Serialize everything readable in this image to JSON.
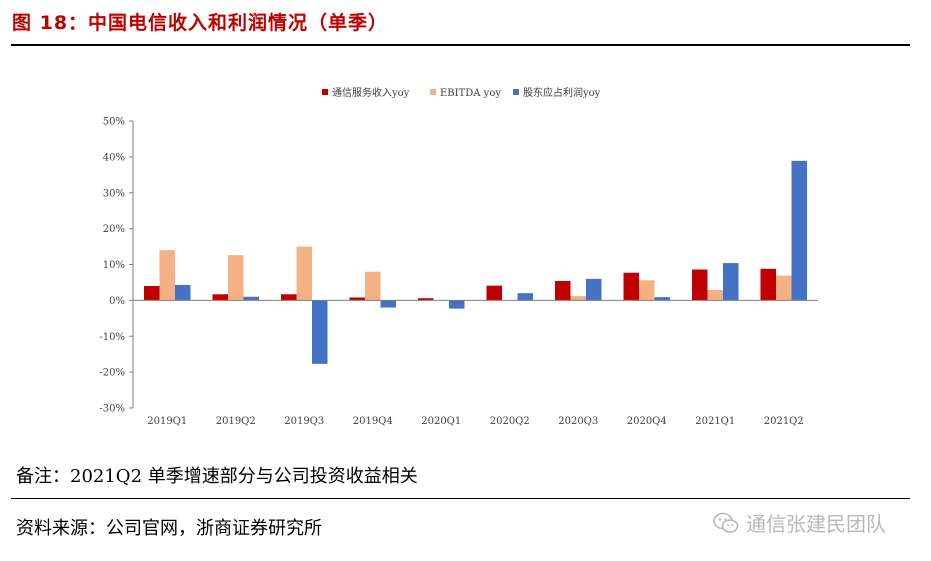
{
  "figure": {
    "title": "图 18：中国电信收入和利润情况（单季）"
  },
  "chart_data": {
    "type": "bar",
    "title": "",
    "xlabel": "",
    "ylabel": "",
    "ylim": [
      -30,
      50
    ],
    "yticks": [
      50,
      40,
      30,
      20,
      10,
      0,
      -10,
      -20,
      -30
    ],
    "ytick_labels": [
      "50%",
      "40%",
      "30%",
      "20%",
      "10%",
      "0%",
      "-10%",
      "-20%",
      "-30%"
    ],
    "categories": [
      "2019Q1",
      "2019Q2",
      "2019Q3",
      "2019Q4",
      "2020Q1",
      "2020Q2",
      "2020Q3",
      "2020Q4",
      "2021Q1",
      "2021Q2"
    ],
    "legend_position": "top-center",
    "series": [
      {
        "name": "通信服务收入yoy",
        "color": "#c00000",
        "values": [
          4.0,
          1.7,
          1.7,
          0.8,
          0.6,
          4.1,
          5.4,
          7.7,
          8.6,
          8.8
        ]
      },
      {
        "name": "EBITDA yoy",
        "color": "#f4b183",
        "values": [
          14.0,
          12.6,
          15.0,
          8.0,
          0.0,
          0.0,
          1.2,
          5.6,
          2.9,
          6.9
        ]
      },
      {
        "name": "股东应占利润yoy",
        "color": "#4472c4",
        "values": [
          4.3,
          1.0,
          -17.7,
          -2.0,
          -2.3,
          2.0,
          6.0,
          0.9,
          10.4,
          38.9
        ]
      }
    ]
  },
  "note": "备注：2021Q2 单季增速部分与公司投资收益相关",
  "source": "资料来源：公司官网，浙商证券研究所",
  "watermark": {
    "text": "通信张建民团队",
    "icon": "wechat-icon"
  }
}
